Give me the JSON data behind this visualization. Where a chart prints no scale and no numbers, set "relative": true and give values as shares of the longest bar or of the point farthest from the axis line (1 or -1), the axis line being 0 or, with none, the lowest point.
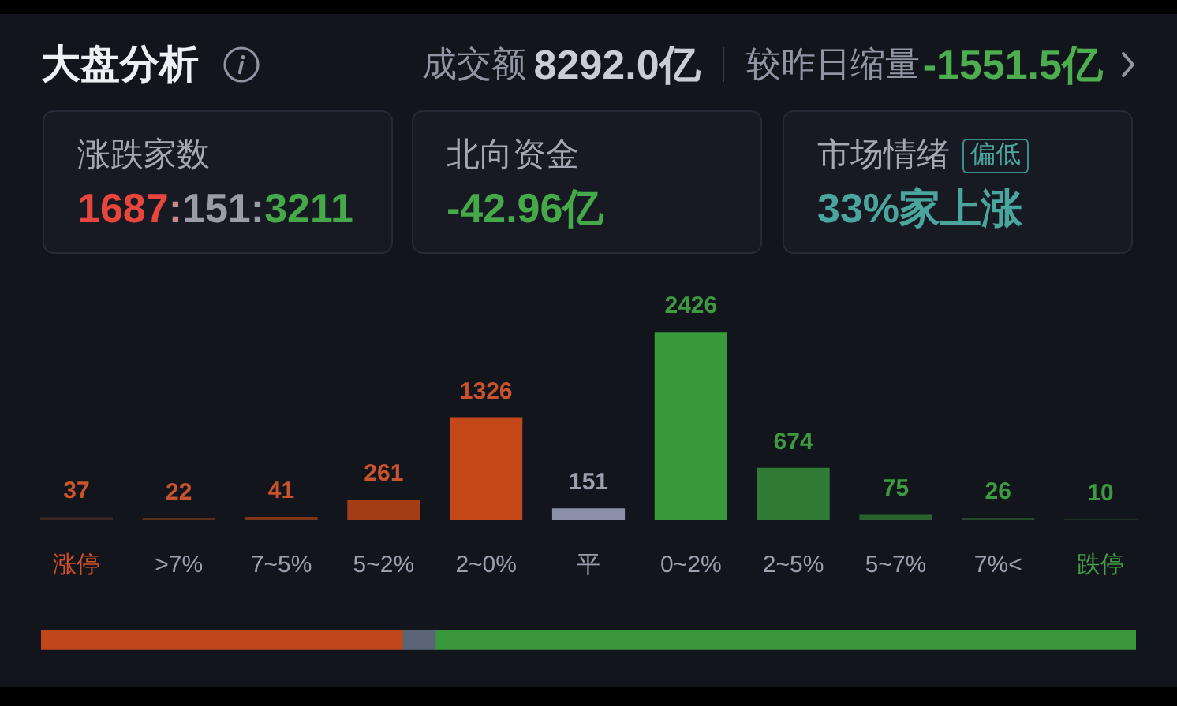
{
  "chart_data": [
    {
      "type": "other",
      "title": "大盘分析",
      "annotations": [
        "成交额",
        "8292.0亿",
        "较昨日缩量",
        "-1551.5亿",
        "涨跌家数",
        "1687:151:3211",
        "北向资金",
        "-42.96亿",
        "市场情绪",
        "偏低",
        "33%家上涨"
      ]
    },
    {
      "type": "bar",
      "categories": [
        "涨停",
        ">7%",
        "7~5%",
        "5~2%",
        "2~0%",
        "平",
        "0~2%",
        "2~5%",
        "5~7%",
        "7%<",
        "跌停"
      ],
      "values": [
        37,
        22,
        41,
        261,
        1326,
        151,
        2426,
        674,
        75,
        26,
        10
      ],
      "colors": [
        "#3a2520",
        "#5b2e1c",
        "#7c3517",
        "#a33e17",
        "#c54818",
        "#8b91a8",
        "#3a9a3a",
        "#2f7a35",
        "#29622e",
        "#244a29",
        "#1d3322"
      ],
      "data_labels": true,
      "tick_labels": "x"
    },
    {
      "type": "bar",
      "orientation": "horizontal",
      "stacked": true,
      "relative": true,
      "categories": [
        null
      ],
      "series": [
        {
          "color": "#c0461c",
          "values": [
            0.33
          ]
        },
        {
          "color": "#5c6478",
          "values": [
            0.03
          ]
        },
        {
          "color": "#3a973c",
          "values": [
            0.64
          ]
        }
      ],
      "tick_labels": false
    }
  ]
}
